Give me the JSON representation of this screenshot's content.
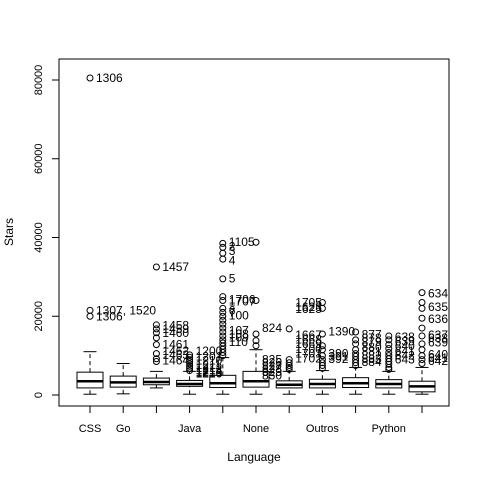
{
  "chart_data": {
    "type": "box",
    "xlabel": "Language",
    "ylabel": "Stars",
    "ylim": [
      -3000,
      84000
    ],
    "y_ticks": [
      0,
      20000,
      40000,
      60000,
      80000
    ],
    "x_tick_labels": [
      {
        "position": 1,
        "label": "CSS"
      },
      {
        "position": 2,
        "label": "Go"
      },
      {
        "position": 4,
        "label": "Java"
      },
      {
        "position": 6,
        "label": "None"
      },
      {
        "position": 8,
        "label": "Outros"
      },
      {
        "position": 10,
        "label": "Python"
      }
    ],
    "grid": false,
    "boxes": [
      {
        "position": 1,
        "stats": [
          200,
          1800,
          3500,
          5800,
          11000
        ],
        "outliers": [
          20000,
          21500,
          80500
        ]
      },
      {
        "position": 2,
        "stats": [
          300,
          2000,
          3200,
          4800,
          8000
        ],
        "outliers": []
      },
      {
        "position": 3,
        "stats": [
          1800,
          2600,
          3300,
          4300,
          6000
        ],
        "outliers": [
          8500,
          9200,
          10500,
          12800,
          14500,
          15800,
          16800,
          17800,
          32500
        ]
      },
      {
        "position": 4,
        "stats": [
          200,
          2200,
          2800,
          3700,
          6000
        ],
        "outliers": [
          6200,
          6800,
          7300,
          7900,
          8500,
          9000,
          9600,
          10200
        ]
      },
      {
        "position": 5,
        "stats": [
          200,
          1900,
          3000,
          5000,
          9500
        ],
        "outliers": [
          10000,
          10800,
          11600,
          12400,
          13200,
          14000,
          15000,
          16000,
          17000,
          18000,
          19000,
          20000,
          21000,
          22000,
          24000,
          25000,
          29500,
          34500,
          36000,
          37500,
          38500
        ]
      },
      {
        "position": 6,
        "stats": [
          200,
          2000,
          3500,
          6000,
          11500
        ],
        "outliers": [
          12500,
          13800,
          15500,
          24000,
          38800
        ]
      },
      {
        "position": 7,
        "stats": [
          200,
          1800,
          2600,
          3600,
          6000
        ],
        "outliers": [
          6500,
          7000,
          7500,
          8200,
          9000,
          16800
        ]
      },
      {
        "position": 8,
        "stats": [
          200,
          1800,
          2800,
          4000,
          6200
        ],
        "outliers": [
          6800,
          7500,
          8200,
          9000,
          10000,
          11500,
          12500,
          15500,
          22000,
          23500
        ]
      },
      {
        "position": 9,
        "stats": [
          200,
          1900,
          3000,
          4400,
          7000
        ],
        "outliers": [
          7500,
          8200,
          9000,
          9800,
          10500,
          11500,
          13000,
          14000,
          16000
        ]
      },
      {
        "position": 10,
        "stats": [
          200,
          1800,
          2800,
          3900,
          6000
        ],
        "outliers": [
          6500,
          7000,
          7800,
          8500,
          9200,
          10000,
          10800,
          11800,
          12800,
          14000,
          15000
        ]
      },
      {
        "position": 11,
        "stats": [
          200,
          800,
          2200,
          3500,
          7000
        ],
        "outliers": [
          8000,
          9000,
          10000,
          11500,
          13000,
          15000,
          17000,
          19500,
          22000,
          23500,
          26000
        ]
      }
    ],
    "point_labels": [
      {
        "position": 1,
        "y": 80500,
        "text": "1306"
      },
      {
        "position": 1,
        "y": 21500,
        "text": "1307, 1520"
      },
      {
        "position": 1,
        "y": 20000,
        "text": "1306"
      },
      {
        "position": 3,
        "y": 32500,
        "text": "1457"
      },
      {
        "position": 3,
        "y": 17600,
        "text": "1458"
      },
      {
        "position": 3,
        "y": 16700,
        "text": "1459"
      },
      {
        "position": 3,
        "y": 15800,
        "text": "1460"
      },
      {
        "position": 3,
        "y": 12800,
        "text": "1461"
      },
      {
        "position": 3,
        "y": 11200,
        "text": "1462"
      },
      {
        "position": 3,
        "y": 10100,
        "text": "1463"
      },
      {
        "position": 3,
        "y": 8800,
        "text": "1464"
      },
      {
        "position": 4,
        "y": 11200,
        "text": "1200"
      },
      {
        "position": 4,
        "y": 9800,
        "text": "1201"
      },
      {
        "position": 4,
        "y": 8800,
        "text": "1210"
      },
      {
        "position": 4,
        "y": 7600,
        "text": "1211"
      },
      {
        "position": 4,
        "y": 6900,
        "text": "1212"
      },
      {
        "position": 4,
        "y": 6400,
        "text": "1213"
      },
      {
        "position": 4,
        "y": 6000,
        "text": "1214"
      },
      {
        "position": 4,
        "y": 5700,
        "text": "1215"
      },
      {
        "position": 4,
        "y": 5400,
        "text": "1216"
      },
      {
        "position": 5,
        "y": 38800,
        "text": "1105"
      },
      {
        "position": 5,
        "y": 37700,
        "text": "2"
      },
      {
        "position": 5,
        "y": 36600,
        "text": "3"
      },
      {
        "position": 5,
        "y": 34100,
        "text": "4"
      },
      {
        "position": 5,
        "y": 29600,
        "text": "5"
      },
      {
        "position": 5,
        "y": 24300,
        "text": "1706"
      },
      {
        "position": 5,
        "y": 23800,
        "text": "1707"
      },
      {
        "position": 5,
        "y": 21400,
        "text": "6"
      },
      {
        "position": 5,
        "y": 20900,
        "text": "7"
      },
      {
        "position": 5,
        "y": 20200,
        "text": "100"
      },
      {
        "position": 5,
        "y": 16400,
        "text": "107"
      },
      {
        "position": 5,
        "y": 15500,
        "text": "108"
      },
      {
        "position": 5,
        "y": 14600,
        "text": "109"
      },
      {
        "position": 5,
        "y": 13400,
        "text": "110"
      },
      {
        "position": 6,
        "y": 17000,
        "text": "824"
      },
      {
        "position": 6,
        "y": 9000,
        "text": "825"
      },
      {
        "position": 6,
        "y": 8200,
        "text": "826"
      },
      {
        "position": 6,
        "y": 7400,
        "text": "827"
      },
      {
        "position": 6,
        "y": 6600,
        "text": "828"
      },
      {
        "position": 6,
        "y": 5800,
        "text": "829"
      },
      {
        "position": 6,
        "y": 5000,
        "text": "830"
      },
      {
        "position": 7,
        "y": 23500,
        "text": "1705"
      },
      {
        "position": 7,
        "y": 22400,
        "text": "1623"
      },
      {
        "position": 7,
        "y": 21900,
        "text": "1625"
      },
      {
        "position": 7,
        "y": 15200,
        "text": "1667"
      },
      {
        "position": 7,
        "y": 14100,
        "text": "1668"
      },
      {
        "position": 7,
        "y": 12900,
        "text": "1669"
      },
      {
        "position": 7,
        "y": 11700,
        "text": "1700"
      },
      {
        "position": 7,
        "y": 10500,
        "text": "1701"
      },
      {
        "position": 7,
        "y": 9300,
        "text": "1702"
      },
      {
        "position": 8,
        "y": 16100,
        "text": "1390"
      },
      {
        "position": 8,
        "y": 10600,
        "text": "390"
      },
      {
        "position": 8,
        "y": 9800,
        "text": "391"
      },
      {
        "position": 8,
        "y": 9200,
        "text": "392"
      },
      {
        "position": 9,
        "y": 15400,
        "text": "877"
      },
      {
        "position": 9,
        "y": 14500,
        "text": "878"
      },
      {
        "position": 9,
        "y": 13400,
        "text": "879"
      },
      {
        "position": 9,
        "y": 12200,
        "text": "880"
      },
      {
        "position": 9,
        "y": 11000,
        "text": "881"
      },
      {
        "position": 9,
        "y": 10000,
        "text": "882"
      },
      {
        "position": 9,
        "y": 9100,
        "text": "883"
      },
      {
        "position": 9,
        "y": 8400,
        "text": "884"
      },
      {
        "position": 10,
        "y": 14700,
        "text": "638"
      },
      {
        "position": 10,
        "y": 13600,
        "text": "639"
      },
      {
        "position": 10,
        "y": 12400,
        "text": "640"
      },
      {
        "position": 10,
        "y": 11200,
        "text": "641"
      },
      {
        "position": 10,
        "y": 10000,
        "text": "642"
      },
      {
        "position": 10,
        "y": 9000,
        "text": "643"
      },
      {
        "position": 11,
        "y": 25800,
        "text": "634"
      },
      {
        "position": 11,
        "y": 22400,
        "text": "635"
      },
      {
        "position": 11,
        "y": 19300,
        "text": "636"
      },
      {
        "position": 11,
        "y": 15300,
        "text": "637"
      },
      {
        "position": 11,
        "y": 14500,
        "text": "638"
      },
      {
        "position": 11,
        "y": 13300,
        "text": "639"
      },
      {
        "position": 11,
        "y": 10300,
        "text": "640"
      },
      {
        "position": 11,
        "y": 9400,
        "text": "641"
      },
      {
        "position": 11,
        "y": 8600,
        "text": "642"
      }
    ]
  }
}
